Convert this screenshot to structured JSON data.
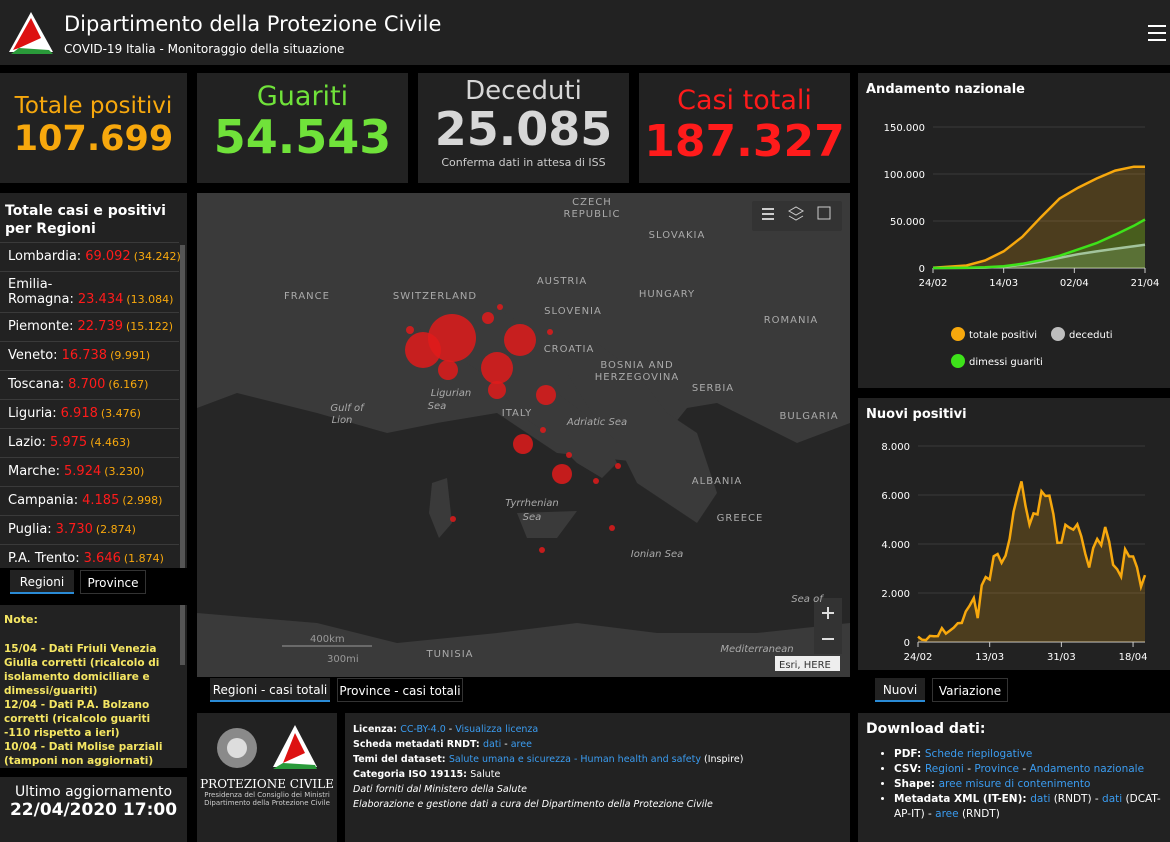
{
  "header": {
    "title": "Dipartimento della Protezione Civile",
    "subtitle": "COVID-19 Italia - Monitoraggio della situazione"
  },
  "stats": [
    {
      "label": "Totale positivi",
      "value": "107.699",
      "color": "#f7a80d"
    },
    {
      "label": "Guariti",
      "value": "54.543",
      "color": "#70e23a"
    },
    {
      "label": "Deceduti",
      "value": "25.085",
      "note": "Conferma dati in attesa di ISS",
      "color": "#d7d7d7"
    },
    {
      "label": "Casi totali",
      "value": "187.327",
      "color": "#ff1b1b"
    }
  ],
  "regions": {
    "title": "Totale casi e positivi per Regioni",
    "rows": [
      {
        "name": "Lombardia:",
        "total": "69.092",
        "positive": "(34.242)"
      },
      {
        "name": "Emilia-Romagna:",
        "total": "23.434",
        "positive": "(13.084)"
      },
      {
        "name": "Piemonte:",
        "total": "22.739",
        "positive": "(15.122)"
      },
      {
        "name": "Veneto:",
        "total": "16.738",
        "positive": "(9.991)"
      },
      {
        "name": "Toscana:",
        "total": "8.700",
        "positive": "(6.167)"
      },
      {
        "name": "Liguria:",
        "total": "6.918",
        "positive": "(3.476)"
      },
      {
        "name": "Lazio:",
        "total": "5.975",
        "positive": "(4.463)"
      },
      {
        "name": "Marche:",
        "total": "5.924",
        "positive": "(3.230)"
      },
      {
        "name": "Campania:",
        "total": "4.185",
        "positive": "(2.998)"
      },
      {
        "name": "Puglia:",
        "total": "3.730",
        "positive": "(2.874)"
      },
      {
        "name": "P.A. Trento:",
        "total": "3.646",
        "positive": "(1.874)"
      }
    ],
    "tabs": [
      "Regioni",
      "Province"
    ]
  },
  "notes": {
    "title": "Note:",
    "items": [
      "15/04 - Dati Friuli Venezia Giulia corretti (ricalcolo di isolamento domiciliare e dimessi/guariti)",
      "12/04 - Dati P.A. Bolzano corretti (ricalcolo guariti -110 rispetto a ieri)",
      "10/04 - Dati  Molise parziali (tamponi non aggiornati)"
    ]
  },
  "update": {
    "label": "Ultimo aggiornamento",
    "value": "22/04/2020 17:00"
  },
  "map": {
    "labels": [
      "FRANCE",
      "SWITZERLAND",
      "AUSTRIA",
      "SLOVENIA",
      "HUNGARY",
      "SLOVAKIA",
      "CZECH",
      "REPUBLIC",
      "ROMANIA",
      "CROATIA",
      "BOSNIA AND",
      "HERZEGOVINA",
      "SERBIA",
      "BULGARIA",
      "ITALY",
      "Ligurian",
      "Sea",
      "Gulf of",
      "Lion",
      "Adriatic Sea",
      "Tyrrhenian",
      "Sea",
      "ALBANIA",
      "GREECE",
      "Ionian Sea",
      "TUNISIA",
      "Mediterranean",
      "Sea of"
    ],
    "scale": [
      "400km",
      "300mi"
    ],
    "attribution": "Esri, HERE",
    "tabs": [
      "Regioni - casi totali",
      "Province - casi totali"
    ]
  },
  "footer": {
    "logo_lines": [
      "PROTEZIONE CIVILE",
      "Presidenza del Consiglio dei Ministri",
      "Dipartimento della Protezione Civile"
    ],
    "lines": [
      [
        {
          "text": "Licenza: ",
          "style": "bold"
        },
        {
          "text": "CC-BY-4.0",
          "style": "link"
        },
        {
          "text": " - ",
          "style": "plain"
        },
        {
          "text": "Visualizza licenza",
          "style": "link"
        }
      ],
      [
        {
          "text": "Scheda metadati RNDT: ",
          "style": "bold"
        },
        {
          "text": "dati",
          "style": "link"
        },
        {
          "text": " - ",
          "style": "plain"
        },
        {
          "text": "aree",
          "style": "link"
        }
      ],
      [
        {
          "text": "Temi del dataset: ",
          "style": "bold"
        },
        {
          "text": "Salute umana e sicurezza - Human health and safety",
          "style": "link"
        },
        {
          "text": " (Inspire)",
          "style": "plain"
        }
      ],
      [
        {
          "text": "Categoria ISO 19115: ",
          "style": "bold"
        },
        {
          "text": "Salute",
          "style": "plain"
        }
      ],
      [
        {
          "text": "Dati forniti dal Ministero della Salute",
          "style": "italic"
        }
      ],
      [
        {
          "text": "Elaborazione e gestione dati a cura del Dipartimento della Protezione Civile",
          "style": "italic"
        }
      ]
    ]
  },
  "trend_chart": {
    "type": "line",
    "title": "Andamento nazionale",
    "x": [
      "24/02",
      "04/03",
      "09/03",
      "14/03",
      "19/03",
      "24/03",
      "29/03",
      "03/04",
      "08/04",
      "13/04",
      "18/04",
      "21/04"
    ],
    "xticks": [
      "24/02",
      "14/03",
      "02/04",
      "21/04"
    ],
    "ylim": [
      0,
      150000
    ],
    "yticks": [
      0,
      {
        "value": 50000,
        "label": "50.000"
      },
      {
        "value": 100000,
        "label": "100.000"
      },
      {
        "value": 150000,
        "label": "150.000"
      }
    ],
    "series": [
      {
        "name": "totale positivi",
        "color": "#f7a80d",
        "values": [
          221,
          2706,
          7985,
          17750,
          33190,
          54030,
          73880,
          85388,
          95262,
          103616,
          107771,
          107709
        ]
      },
      {
        "name": "deceduti",
        "color": "#bdbdbd",
        "values": [
          7,
          107,
          463,
          1441,
          3405,
          6820,
          10779,
          14681,
          17669,
          20465,
          23227,
          24648
        ]
      },
      {
        "name": "dimessi guariti",
        "color": "#3ee21a",
        "values": [
          1,
          276,
          724,
          1966,
          4440,
          8326,
          13030,
          19758,
          26491,
          35435,
          44927,
          51600
        ]
      }
    ]
  },
  "new_chart": {
    "type": "area",
    "title": "Nuovi positivi",
    "color": "#f7a80d",
    "x": [
      "24/02",
      "25/02",
      "26/02",
      "27/02",
      "28/02",
      "29/02",
      "01/03",
      "02/03",
      "03/03",
      "04/03",
      "05/03",
      "06/03",
      "07/03",
      "08/03",
      "09/03",
      "10/03",
      "11/03",
      "12/03",
      "13/03",
      "14/03",
      "15/03",
      "16/03",
      "17/03",
      "18/03",
      "19/03",
      "20/03",
      "21/03",
      "22/03",
      "23/03",
      "24/03",
      "25/03",
      "26/03",
      "27/03",
      "28/03",
      "29/03",
      "30/03",
      "31/03",
      "01/04",
      "02/04",
      "03/04",
      "04/04",
      "05/04",
      "06/04",
      "07/04",
      "08/04",
      "09/04",
      "10/04",
      "11/04",
      "12/04",
      "13/04",
      "14/04",
      "15/04",
      "16/04",
      "17/04",
      "18/04",
      "19/04",
      "20/04",
      "21/04"
    ],
    "values": [
      221,
      93,
      78,
      250,
      238,
      240,
      566,
      342,
      466,
      587,
      769,
      778,
      1247,
      1492,
      1797,
      977,
      2313,
      2651,
      2547,
      3497,
      3590,
      3233,
      3526,
      4207,
      5322,
      5986,
      6557,
      5560,
      4789,
      5249,
      5210,
      6153,
      5959,
      5974,
      5217,
      4050,
      4053,
      4782,
      4668,
      4585,
      4805,
      4316,
      3599,
      3039,
      3836,
      4204,
      3951,
      4694,
      4092,
      3153,
      2972,
      2667,
      3786,
      3493,
      3491,
      3047,
      2256,
      2729
    ],
    "xticks": [
      "24/02",
      "13/03",
      "31/03",
      "18/04"
    ],
    "ylim": [
      0,
      8000
    ],
    "yticks": [
      0,
      {
        "value": 2000,
        "label": "2.000"
      },
      {
        "value": 4000,
        "label": "4.000"
      },
      {
        "value": 6000,
        "label": "6.000"
      },
      {
        "value": 8000,
        "label": "8.000"
      }
    ],
    "tabs": [
      "Nuovi",
      "Variazione"
    ]
  },
  "download": {
    "title": "Download dati:",
    "items": [
      [
        {
          "text": "PDF: ",
          "style": "bold"
        },
        {
          "text": "Schede riepilogative",
          "style": "link"
        }
      ],
      [
        {
          "text": "CSV: ",
          "style": "bold"
        },
        {
          "text": "Regioni",
          "style": "link"
        },
        {
          "text": " - ",
          "style": "plain"
        },
        {
          "text": "Province",
          "style": "link"
        },
        {
          "text": " - ",
          "style": "plain"
        },
        {
          "text": "Andamento nazionale",
          "style": "link"
        }
      ],
      [
        {
          "text": "Shape: ",
          "style": "bold"
        },
        {
          "text": "aree misure di contenimento",
          "style": "link"
        }
      ],
      [
        {
          "text": "Metadata XML (IT-EN): ",
          "style": "bold"
        },
        {
          "text": "dati",
          "style": "link"
        },
        {
          "text": " (RNDT) - ",
          "style": "plain"
        },
        {
          "text": "dati",
          "style": "link"
        },
        {
          "text": " (DCAT-AP-IT) - ",
          "style": "plain"
        },
        {
          "text": "aree",
          "style": "link"
        },
        {
          "text": " (RNDT)",
          "style": "plain"
        }
      ]
    ]
  }
}
